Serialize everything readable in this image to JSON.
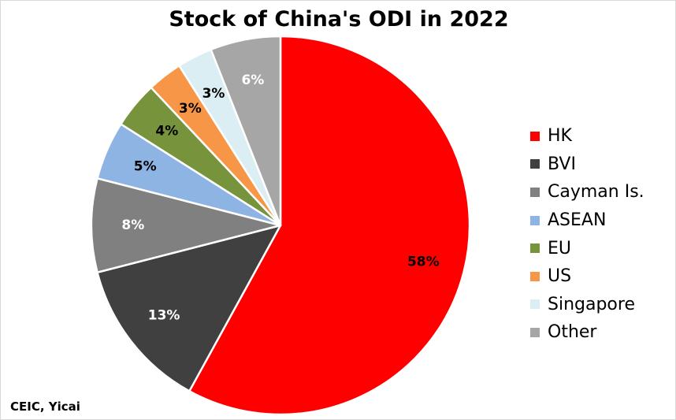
{
  "chart_data": {
    "type": "pie",
    "title": "Stock of China's ODI in 2022",
    "slices": [
      {
        "name": "HK",
        "value": 58,
        "label": "58%",
        "color": "#ff0000",
        "label_color": "#000000"
      },
      {
        "name": "BVI",
        "value": 13,
        "label": "13%",
        "color": "#404040",
        "label_color": "#ffffff"
      },
      {
        "name": "Cayman Is.",
        "value": 8,
        "label": "8%",
        "color": "#808080",
        "label_color": "#ffffff"
      },
      {
        "name": "ASEAN",
        "value": 5,
        "label": "5%",
        "color": "#8eb4e3",
        "label_color": "#000000"
      },
      {
        "name": "EU",
        "value": 4,
        "label": "4%",
        "color": "#77933c",
        "label_color": "#000000"
      },
      {
        "name": "US",
        "value": 3,
        "label": "3%",
        "color": "#f79646",
        "label_color": "#000000"
      },
      {
        "name": "Singapore",
        "value": 3,
        "label": "3%",
        "color": "#dbeef4",
        "label_color": "#000000"
      },
      {
        "name": "Other",
        "value": 6,
        "label": "6%",
        "color": "#a6a6a6",
        "label_color": "#ffffff"
      }
    ],
    "legend_position": "right",
    "start": "12 o'clock",
    "direction": "clockwise"
  },
  "source": "CEIC, Yicai"
}
